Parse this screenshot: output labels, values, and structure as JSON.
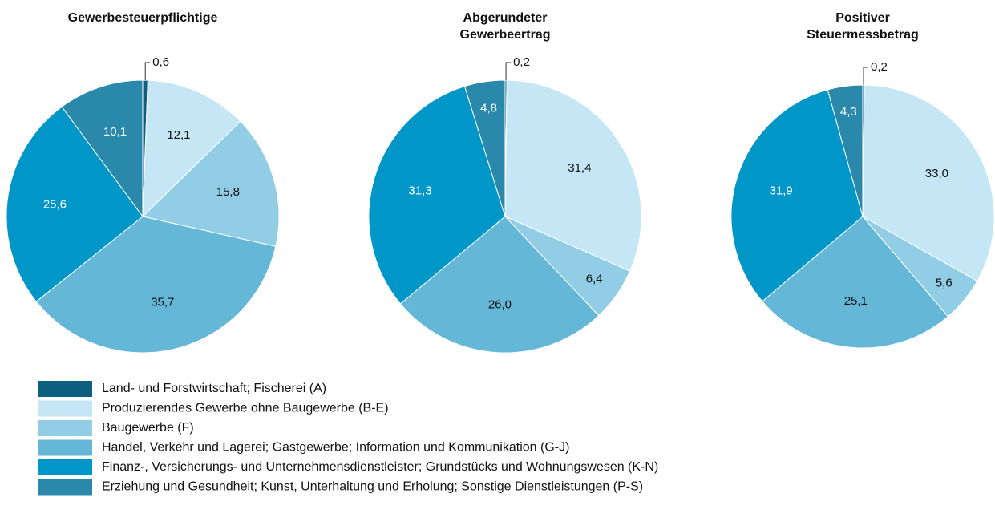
{
  "chart_data": {
    "type": "pie",
    "categories": [
      "Land- und Forstwirtschaft; Fischerei (A)",
      "Produzierendes Gewerbe ohne Baugewerbe (B-E)",
      "Baugewerbe (F)",
      "Handel, Verkehr und Lagerei; Gastgewerbe; Information und Kommunikation (G-J)",
      "Finanz-, Versicherungs- und Unternehmensdienstleister; Grundstücks und Wohnungswesen (K-N)",
      "Erziehung und Gesundheit; Kunst, Unterhaltung und Erholung; Sonstige Dienstleistungen (P-S)"
    ],
    "colors": [
      "#0e5f7e",
      "#c5e6f4",
      "#92cde6",
      "#65b7d8",
      "#0096c8",
      "#2a88ab"
    ],
    "series": [
      {
        "name": "Gewerbesteuerpflichtige",
        "values": [
          0.6,
          12.1,
          15.8,
          35.7,
          25.6,
          10.1
        ],
        "value_labels": [
          "0,6",
          "12,1",
          "15,8",
          "35,7",
          "25,6",
          "10,1"
        ]
      },
      {
        "name": "Abgerundeter Gewerbeertrag",
        "values": [
          0.2,
          31.4,
          6.4,
          26.0,
          31.3,
          4.8
        ],
        "value_labels": [
          "0,2",
          "31,4",
          "6,4",
          "26,0",
          "31,3",
          "4,8"
        ]
      },
      {
        "name": "Positiver Steuermessbetrag",
        "values": [
          0.2,
          33.0,
          5.6,
          25.1,
          31.9,
          4.3
        ],
        "value_labels": [
          "0,2",
          "33,0",
          "5,6",
          "25,1",
          "31,9",
          "4,3"
        ]
      }
    ]
  }
}
